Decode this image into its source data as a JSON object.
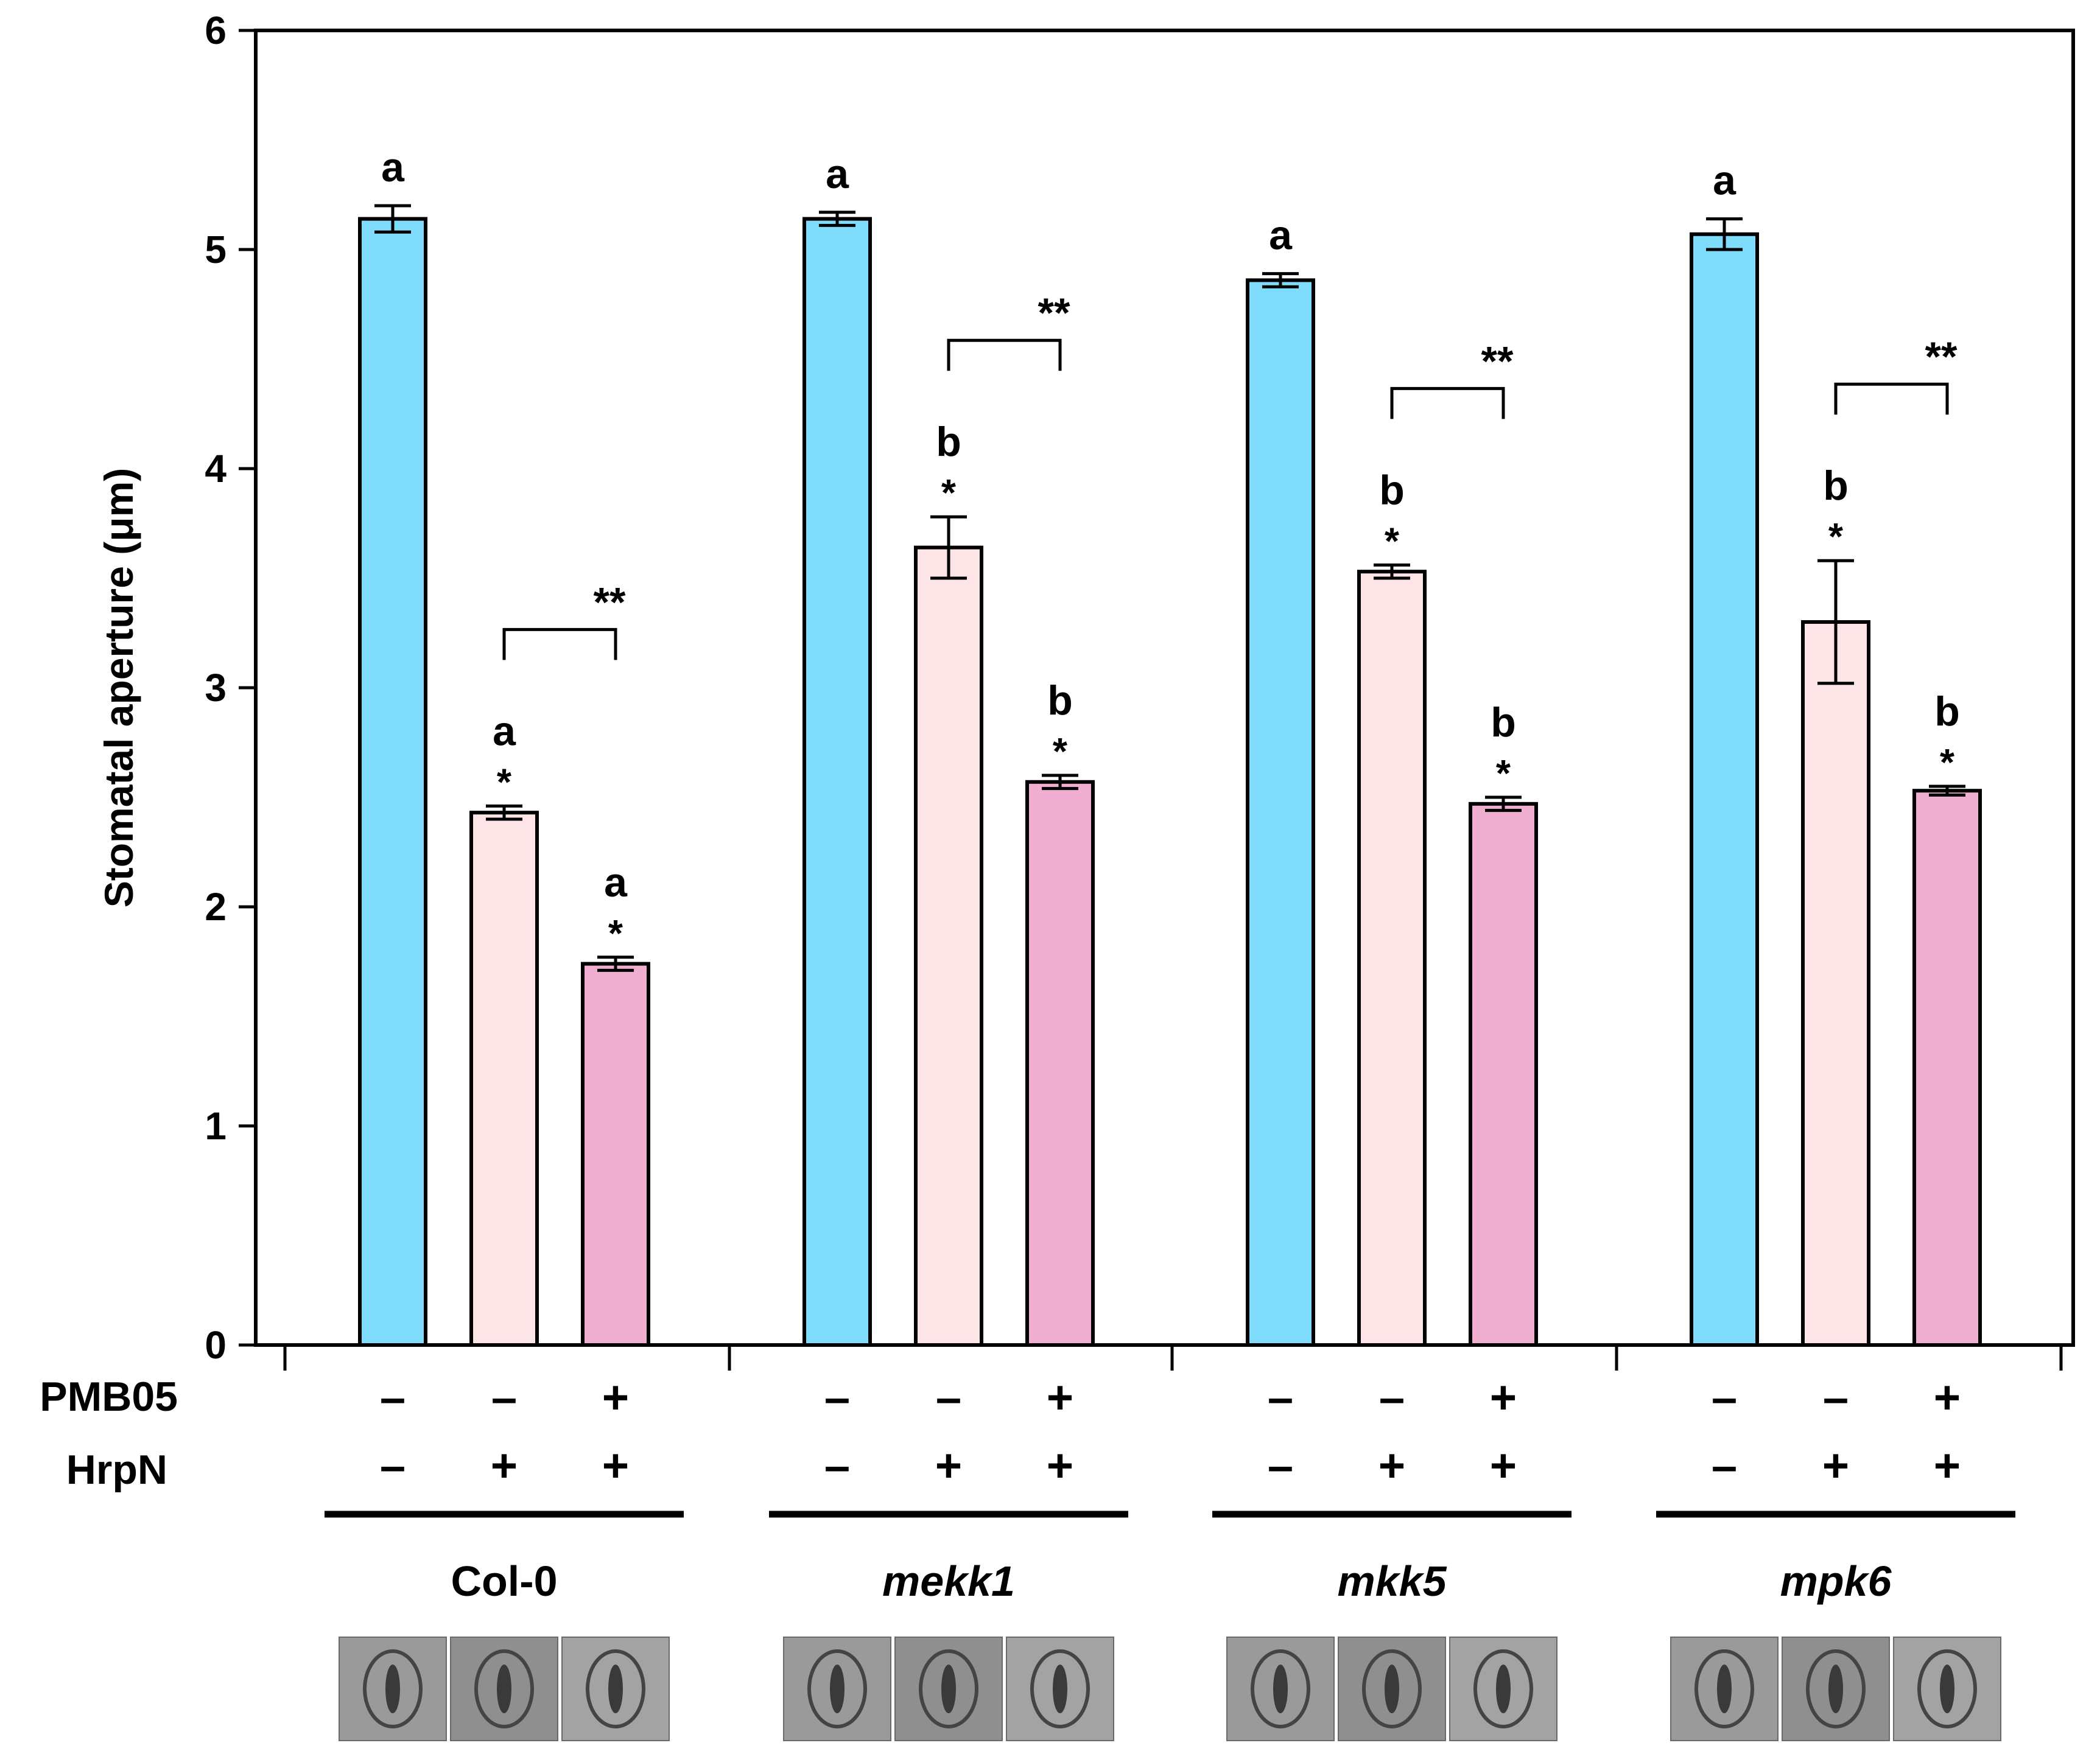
{
  "chart_data": {
    "type": "bar",
    "title": "",
    "xlabel": "",
    "ylabel": "Stomatal aperture (μm)",
    "ylim": [
      0,
      6
    ],
    "yticks": [
      "0",
      "1",
      "2",
      "3",
      "4",
      "5",
      "6"
    ],
    "row_labels": {
      "pmb05": "PMB05",
      "hrpn": "HrpN"
    },
    "colors": {
      "control": "#7fdcfb",
      "hrpn": "#fde5e7",
      "pmb05_hrpn": "#f0afd1"
    },
    "groups": [
      {
        "name": "Col-0",
        "italic": false,
        "bars": [
          {
            "value": 5.14,
            "error": 0.06,
            "pmb05": "–",
            "hrpn": "–",
            "letter": "a",
            "star": "",
            "color": "control"
          },
          {
            "value": 2.43,
            "error": 0.03,
            "pmb05": "–",
            "hrpn": "+",
            "letter": "a",
            "star": "*",
            "color": "hrpn"
          },
          {
            "value": 1.74,
            "error": 0.03,
            "pmb05": "+",
            "hrpn": "+",
            "letter": "a",
            "star": "*",
            "color": "pmb05_hrpn"
          }
        ],
        "bracket": "**"
      },
      {
        "name": "mekk1",
        "italic": true,
        "bars": [
          {
            "value": 5.14,
            "error": 0.03,
            "pmb05": "–",
            "hrpn": "–",
            "letter": "a",
            "star": "",
            "color": "control"
          },
          {
            "value": 3.64,
            "error": 0.14,
            "pmb05": "–",
            "hrpn": "+",
            "letter": "b",
            "star": "*",
            "color": "hrpn"
          },
          {
            "value": 2.57,
            "error": 0.03,
            "pmb05": "+",
            "hrpn": "+",
            "letter": "b",
            "star": "*",
            "color": "pmb05_hrpn"
          }
        ],
        "bracket": "**"
      },
      {
        "name": "mkk5",
        "italic": true,
        "bars": [
          {
            "value": 4.86,
            "error": 0.03,
            "pmb05": "–",
            "hrpn": "–",
            "letter": "a",
            "star": "",
            "color": "control"
          },
          {
            "value": 3.53,
            "error": 0.03,
            "pmb05": "–",
            "hrpn": "+",
            "letter": "b",
            "star": "*",
            "color": "hrpn"
          },
          {
            "value": 2.47,
            "error": 0.03,
            "pmb05": "+",
            "hrpn": "+",
            "letter": "b",
            "star": "*",
            "color": "pmb05_hrpn"
          }
        ],
        "bracket": "**"
      },
      {
        "name": "mpk6",
        "italic": true,
        "bars": [
          {
            "value": 5.07,
            "error": 0.07,
            "pmb05": "–",
            "hrpn": "–",
            "letter": "a",
            "star": "",
            "color": "control"
          },
          {
            "value": 3.3,
            "error": 0.28,
            "pmb05": "–",
            "hrpn": "+",
            "letter": "b",
            "star": "*",
            "color": "hrpn"
          },
          {
            "value": 2.53,
            "error": 0.02,
            "pmb05": "+",
            "hrpn": "+",
            "letter": "b",
            "star": "*",
            "color": "pmb05_hrpn"
          }
        ],
        "bracket": "**"
      }
    ]
  }
}
